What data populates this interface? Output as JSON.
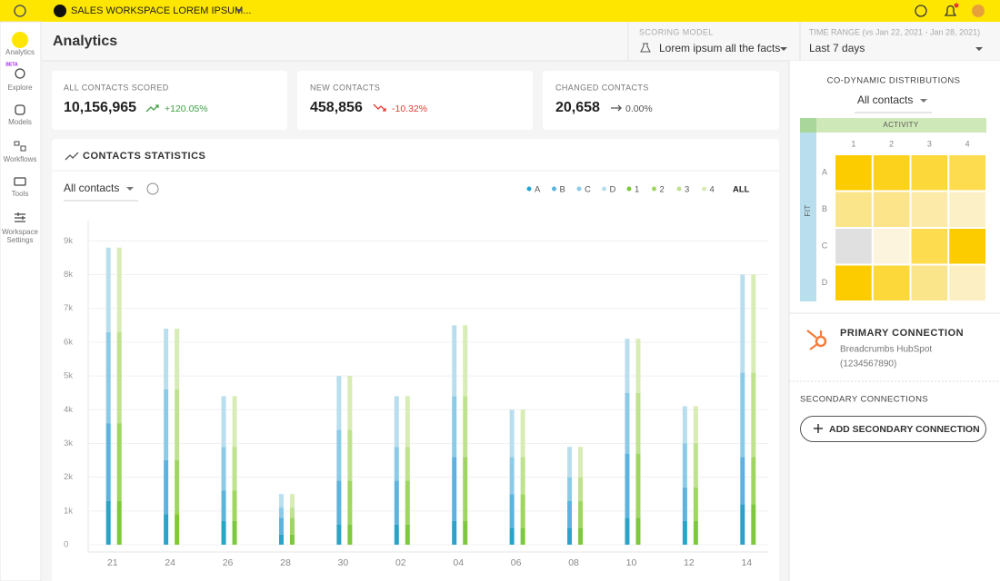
{
  "topbar": {
    "workspace": "SALES WORKSPACE LOREM IPSUM..."
  },
  "sidebar": {
    "items": [
      {
        "label": "Analytics"
      },
      {
        "label": "Explore",
        "badge": "BETA"
      },
      {
        "label": "Models"
      },
      {
        "label": "Workflows"
      },
      {
        "label": "Tools"
      },
      {
        "label_lines": [
          "Workspace",
          "Settings"
        ]
      }
    ]
  },
  "header": {
    "title": "Analytics",
    "scoring_model": {
      "label": "SCORING MODEL",
      "value": "Lorem ipsum all the facts"
    },
    "time_range": {
      "label": "TIME RANGE (vs Jan 22, 2021 - Jan 28, 2021)",
      "value": "Last 7 days"
    }
  },
  "kpis": [
    {
      "label": "ALL CONTACTS SCORED",
      "value": "10,156,965",
      "change": "+120.05%"
    },
    {
      "label": "NEW CONTACTS",
      "value": "458,856",
      "change": "-10.32%"
    },
    {
      "label": "CHANGED CONTACTS",
      "value": "20,658",
      "change": "0.00%"
    }
  ],
  "contacts_statistics": {
    "title": "CONTACTS STATISTICS",
    "filter": "All contacts",
    "legend_all": "ALL"
  },
  "chart_data": {
    "type": "bar",
    "categories": [
      "21",
      "24",
      "26",
      "28",
      "30",
      "02",
      "04",
      "06",
      "08",
      "10",
      "12",
      "14"
    ],
    "groups": [
      {
        "series": [
          {
            "name": "A",
            "color": "#2ba3c8",
            "values": [
              1300,
              900,
              700,
              300,
              600,
              600,
              700,
              500,
              500,
              800,
              700,
              1200
            ]
          },
          {
            "name": "B",
            "color": "#5cb3de",
            "values": [
              2300,
              1600,
              900,
              500,
              1300,
              1300,
              1900,
              1000,
              800,
              1900,
              1000,
              1400
            ]
          },
          {
            "name": "C",
            "color": "#8ccbe8",
            "values": [
              2700,
              2100,
              1300,
              300,
              1500,
              1000,
              1800,
              1100,
              700,
              1800,
              1300,
              2500
            ]
          },
          {
            "name": "D",
            "color": "#b9dfee",
            "values": [
              2500,
              1800,
              1500,
              400,
              1600,
              1500,
              2100,
              1400,
              900,
              1600,
              1100,
              2900
            ]
          }
        ]
      },
      {
        "series": [
          {
            "name": "1",
            "color": "#7dc93b",
            "values": [
              1300,
              900,
              700,
              300,
              600,
              600,
              700,
              500,
              500,
              800,
              700,
              1200
            ]
          },
          {
            "name": "2",
            "color": "#9fd660",
            "values": [
              2300,
              1600,
              900,
              500,
              1300,
              1300,
              1900,
              1000,
              800,
              1900,
              1000,
              1400
            ]
          },
          {
            "name": "3",
            "color": "#bfe28f",
            "values": [
              2700,
              2100,
              1300,
              300,
              1500,
              1000,
              1800,
              1100,
              700,
              1800,
              1300,
              2500
            ]
          },
          {
            "name": "4",
            "color": "#d8ecb5",
            "values": [
              2500,
              1800,
              1500,
              400,
              1600,
              1500,
              2100,
              1400,
              900,
              1600,
              1100,
              2900
            ]
          }
        ]
      }
    ],
    "ylim": [
      0,
      9600
    ],
    "yticks": [
      {
        "value": 0,
        "label": "0"
      },
      {
        "value": 1000,
        "label": "1k"
      },
      {
        "value": 2000,
        "label": "2k"
      },
      {
        "value": 3000,
        "label": "3k"
      },
      {
        "value": 4000,
        "label": "4k"
      },
      {
        "value": 5000,
        "label": "5k"
      },
      {
        "value": 6000,
        "label": "6k"
      },
      {
        "value": 7000,
        "label": "7k"
      },
      {
        "value": 8000,
        "label": "8k"
      },
      {
        "value": 9000,
        "label": "9k"
      }
    ],
    "grid": true
  },
  "distributions": {
    "title": "CO-DYNAMIC DISTRIBUTIONS",
    "filter": "All contacts",
    "x_axis": "ACTIVITY",
    "y_axis": "FIT",
    "columns": [
      "1",
      "2",
      "3",
      "4"
    ],
    "rows": [
      "A",
      "B",
      "C",
      "D"
    ],
    "cell_colors": [
      [
        "#fccc00",
        "#fdd21c",
        "#fdd83a",
        "#fddc50"
      ],
      [
        "#fbe58a",
        "#fbe48a",
        "#fbeaa8",
        "#fcf0c7"
      ],
      [
        "#e0e0e0",
        "#fcf4dc",
        "#fddc50",
        "#fccc00"
      ],
      [
        "#fccc00",
        "#fdd83a",
        "#fbe58a",
        "#fcefc3"
      ]
    ]
  },
  "primary_connection": {
    "title": "PRIMARY CONNECTION",
    "name": "Breadcrumbs HubSpot",
    "id": "(1234567890)"
  },
  "secondary_connections": {
    "title": "SECONDARY CONNECTIONS",
    "button": "ADD SECONDARY CONNECTION"
  }
}
